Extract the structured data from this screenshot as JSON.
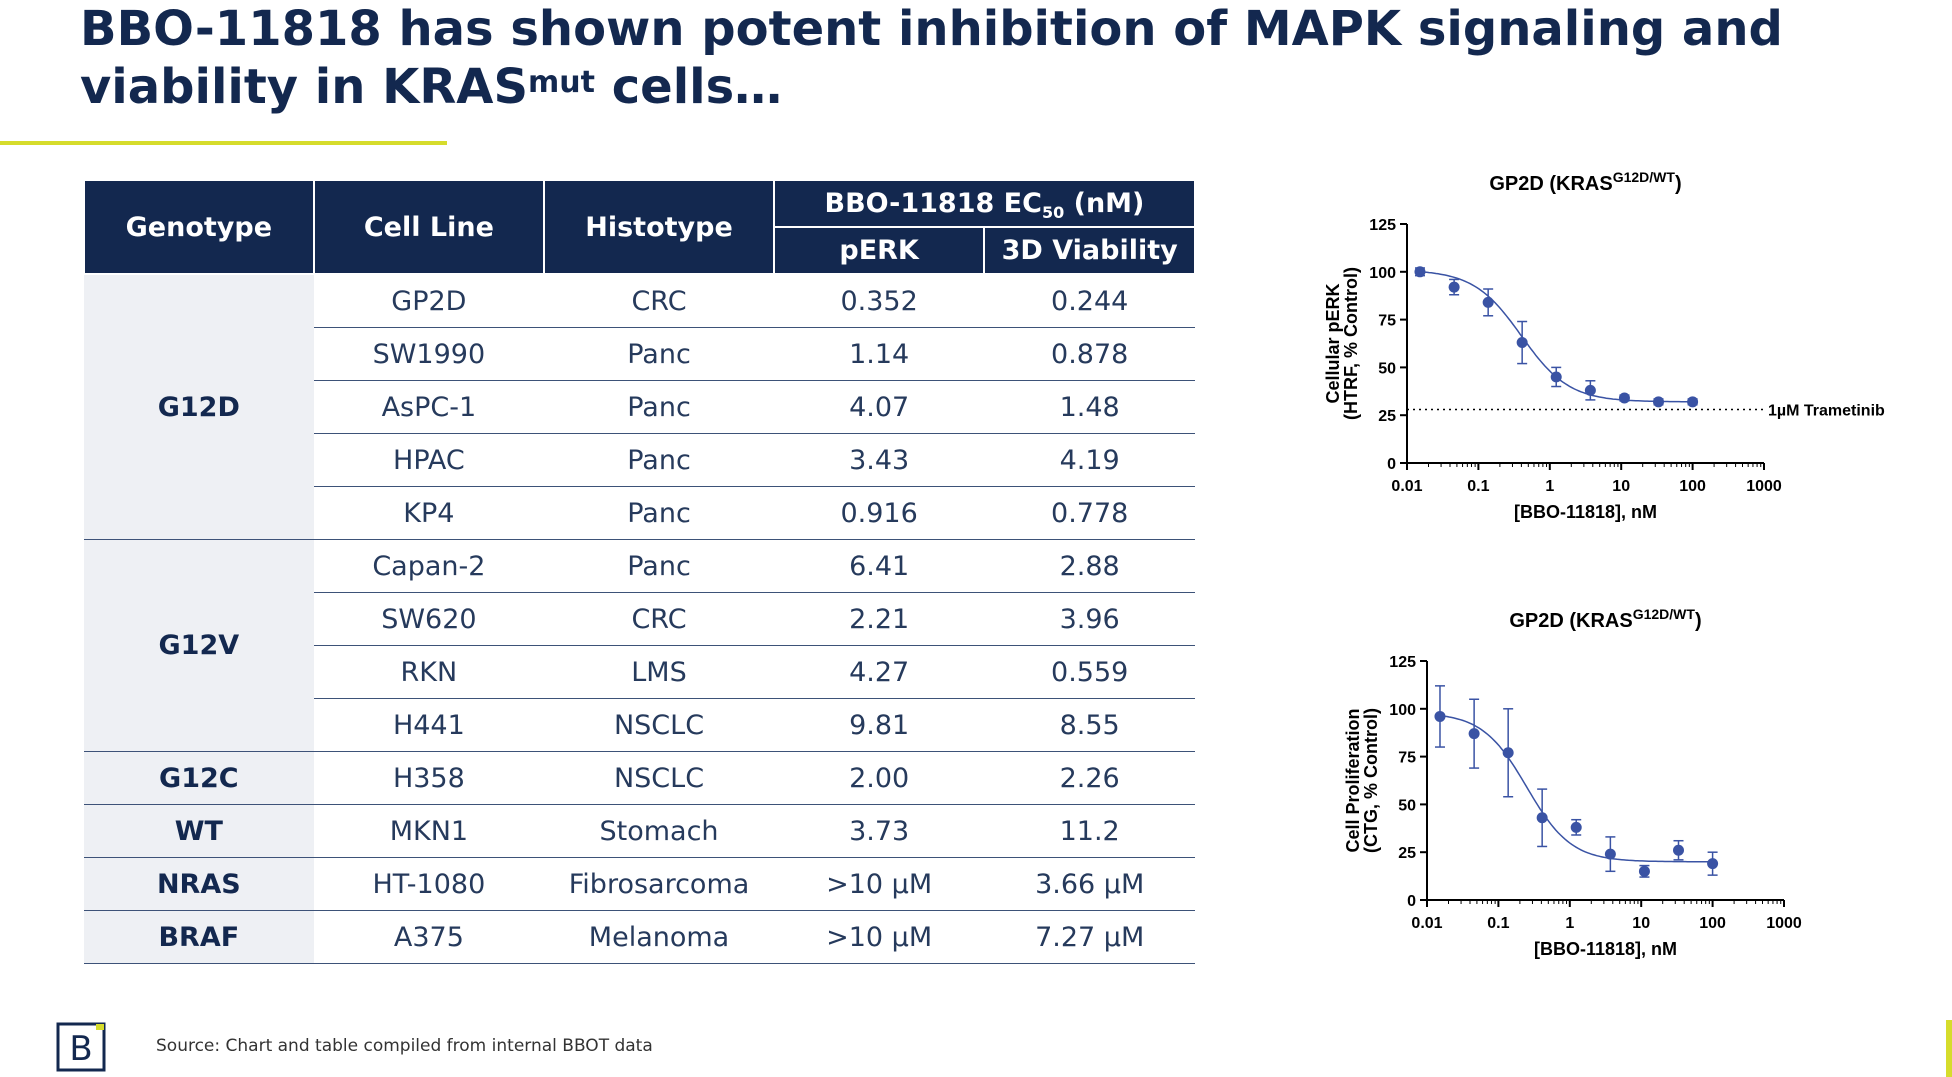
{
  "slide": {
    "title_part1": "BBO-11818 has shown potent inhibition of MAPK signaling and viability in KRAS",
    "title_sup": "mut",
    "title_part2": " cells…",
    "source": "Source: Chart and table compiled from internal BBOT data",
    "logo": "B"
  },
  "table": {
    "headers": {
      "genotype": "Genotype",
      "cell_line": "Cell Line",
      "histotype": "Histotype",
      "ec50_main": "BBO-11818 EC",
      "ec50_sub": "50",
      "ec50_unit": " (nM)",
      "perk": "pERK",
      "viability": "3D Viability"
    },
    "groups": [
      {
        "genotype": "G12D",
        "rows": [
          [
            "GP2D",
            "CRC",
            "0.352",
            "0.244"
          ],
          [
            "SW1990",
            "Panc",
            "1.14",
            "0.878"
          ],
          [
            "AsPC-1",
            "Panc",
            "4.07",
            "1.48"
          ],
          [
            "HPAC",
            "Panc",
            "3.43",
            "4.19"
          ],
          [
            "KP4",
            "Panc",
            "0.916",
            "0.778"
          ]
        ]
      },
      {
        "genotype": "G12V",
        "rows": [
          [
            "Capan-2",
            "Panc",
            "6.41",
            "2.88"
          ],
          [
            "SW620",
            "CRC",
            "2.21",
            "3.96"
          ],
          [
            "RKN",
            "LMS",
            "4.27",
            "0.559"
          ],
          [
            "H441",
            "NSCLC",
            "9.81",
            "8.55"
          ]
        ]
      },
      {
        "genotype": "G12C",
        "rows": [
          [
            "H358",
            "NSCLC",
            "2.00",
            "2.26"
          ]
        ]
      },
      {
        "genotype": "WT",
        "rows": [
          [
            "MKN1",
            "Stomach",
            "3.73",
            "11.2"
          ]
        ]
      },
      {
        "genotype": "NRAS",
        "rows": [
          [
            "HT-1080",
            "Fibrosarcoma",
            ">10 µM",
            "3.66 µM"
          ]
        ]
      },
      {
        "genotype": "BRAF",
        "rows": [
          [
            "A375",
            "Melanoma",
            ">10 µM",
            "7.27 µM"
          ]
        ]
      }
    ]
  },
  "chart_data": [
    {
      "type": "scatter",
      "title_main": "GP2D (KRAS",
      "title_sup": "G12D/WT",
      "title_end": ")",
      "xlabel": "[BBO-11818], nM",
      "ylabel_line1": "Cellular pERK",
      "ylabel_line2": "(HTRF, % Control)",
      "xscale": "log",
      "xlim": [
        0.01,
        1000
      ],
      "ylim": [
        0,
        125
      ],
      "xticks": [
        "0.01",
        "0.1",
        "1",
        "10",
        "100",
        "1000"
      ],
      "yticks": [
        "0",
        "25",
        "50",
        "75",
        "100",
        "125"
      ],
      "series": [
        {
          "x": [
            0.0152,
            0.0457,
            0.137,
            0.41,
            1.23,
            3.7,
            11.1,
            33.3,
            100
          ],
          "y": [
            100,
            92,
            84,
            63,
            45,
            38,
            34,
            32,
            32
          ],
          "err": [
            2,
            4,
            7,
            11,
            5,
            5,
            1.5,
            1.5,
            1.5
          ],
          "color": "#3a53a4"
        }
      ],
      "fit": {
        "bottom": 32,
        "top": 101,
        "ec50": 0.4,
        "hill": 1.3
      },
      "reference_line": {
        "y": 28,
        "label": "1µM Trametinib",
        "style": "dotted"
      }
    },
    {
      "type": "scatter",
      "title_main": "GP2D (KRAS",
      "title_sup": "G12D/WT",
      "title_end": ")",
      "xlabel": "[BBO-11818], nM",
      "ylabel_line1": "Cell Proliferation",
      "ylabel_line2": "(CTG, % Control)",
      "xscale": "log",
      "xlim": [
        0.01,
        1000
      ],
      "ylim": [
        0,
        125
      ],
      "xticks": [
        "0.01",
        "0.1",
        "1",
        "10",
        "100",
        "1000"
      ],
      "yticks": [
        "0",
        "25",
        "50",
        "75",
        "100",
        "125"
      ],
      "series": [
        {
          "x": [
            0.0152,
            0.0457,
            0.137,
            0.41,
            1.23,
            3.7,
            11.1,
            33.3,
            100
          ],
          "y": [
            96,
            87,
            77,
            43,
            38,
            24,
            15,
            26,
            19
          ],
          "err": [
            16,
            18,
            23,
            15,
            4,
            9,
            3,
            5,
            6
          ],
          "color": "#3a53a4"
        }
      ],
      "fit": {
        "bottom": 20,
        "top": 98,
        "ec50": 0.25,
        "hill": 1.4
      }
    }
  ]
}
